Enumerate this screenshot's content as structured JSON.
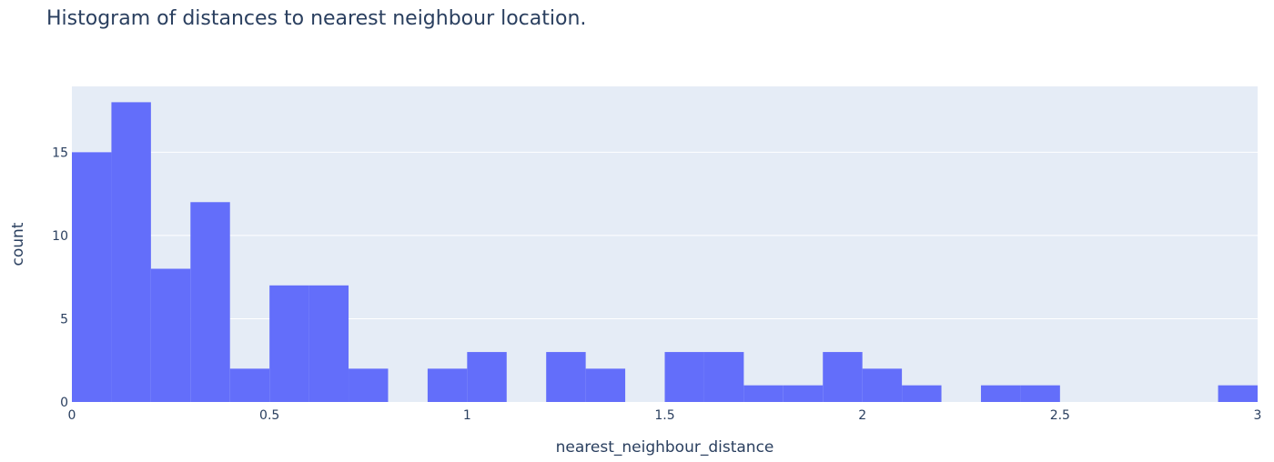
{
  "chart_data": {
    "type": "bar",
    "title": "Histogram of distances to nearest neighbour location.",
    "xlabel": "nearest_neighbour_distance",
    "ylabel": "count",
    "xlim": [
      0,
      3
    ],
    "ylim": [
      0,
      18.95
    ],
    "grid": true,
    "bin_size": 0.1,
    "x_ticks": [
      {
        "value": 0,
        "label": "0"
      },
      {
        "value": 0.5,
        "label": "0.5"
      },
      {
        "value": 1,
        "label": "1"
      },
      {
        "value": 1.5,
        "label": "1.5"
      },
      {
        "value": 2,
        "label": "2"
      },
      {
        "value": 2.5,
        "label": "2.5"
      },
      {
        "value": 3,
        "label": "3"
      }
    ],
    "y_ticks": [
      {
        "value": 0,
        "label": "0"
      },
      {
        "value": 5,
        "label": "5"
      },
      {
        "value": 10,
        "label": "10"
      },
      {
        "value": 15,
        "label": "15"
      }
    ],
    "bins_start": [
      0,
      0.1,
      0.2,
      0.3,
      0.4,
      0.5,
      0.6,
      0.7,
      0.8,
      0.9,
      1.0,
      1.1,
      1.2,
      1.3,
      1.4,
      1.5,
      1.6,
      1.7,
      1.8,
      1.9,
      2.0,
      2.1,
      2.2,
      2.3,
      2.4,
      2.5,
      2.6,
      2.7,
      2.8,
      2.9
    ],
    "values": [
      15,
      18,
      8,
      12,
      2,
      7,
      7,
      2,
      0,
      2,
      3,
      0,
      3,
      2,
      0,
      3,
      3,
      1,
      1,
      3,
      2,
      1,
      0,
      1,
      1,
      0,
      0,
      0,
      0,
      1
    ],
    "colors": {
      "bar": "#636efa",
      "plot_bg": "#e5ecf6",
      "grid": "#ffffff",
      "text": "#2a3f5f"
    }
  }
}
